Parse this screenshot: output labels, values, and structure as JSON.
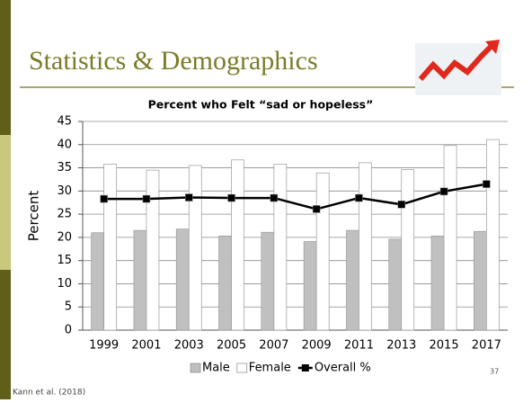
{
  "header": {
    "title": "Statistics & Demographics"
  },
  "page_number": "37",
  "citation": "Kann et al. (2018)",
  "chart_data": {
    "type": "bar",
    "title": "Percent who Felt “sad or hopeless”",
    "y_label": "Percent",
    "categories": [
      "1999",
      "2001",
      "2003",
      "2005",
      "2007",
      "2009",
      "2011",
      "2013",
      "2015",
      "2017"
    ],
    "series": [
      {
        "name": "Male",
        "color": "#c0c0c0",
        "values": [
          21,
          21.5,
          21.8,
          20.3,
          21.1,
          19.1,
          21.5,
          19.6,
          20.3,
          21.3
        ]
      },
      {
        "name": "Female",
        "color": "#ffffff",
        "values": [
          35.8,
          34.5,
          35.5,
          36.7,
          35.8,
          33.9,
          36.1,
          34.6,
          39.8,
          41.1
        ]
      },
      {
        "name": "Overall %",
        "type": "line",
        "color": "#000000",
        "values": [
          28.3,
          28.3,
          28.6,
          28.5,
          28.5,
          26.1,
          28.5,
          27.1,
          29.9,
          31.5
        ]
      }
    ],
    "ylim": [
      0,
      45
    ],
    "yticks": [
      0,
      5,
      10,
      15,
      20,
      25,
      30,
      35,
      40,
      45
    ],
    "grid": true,
    "legend": "bottom"
  }
}
